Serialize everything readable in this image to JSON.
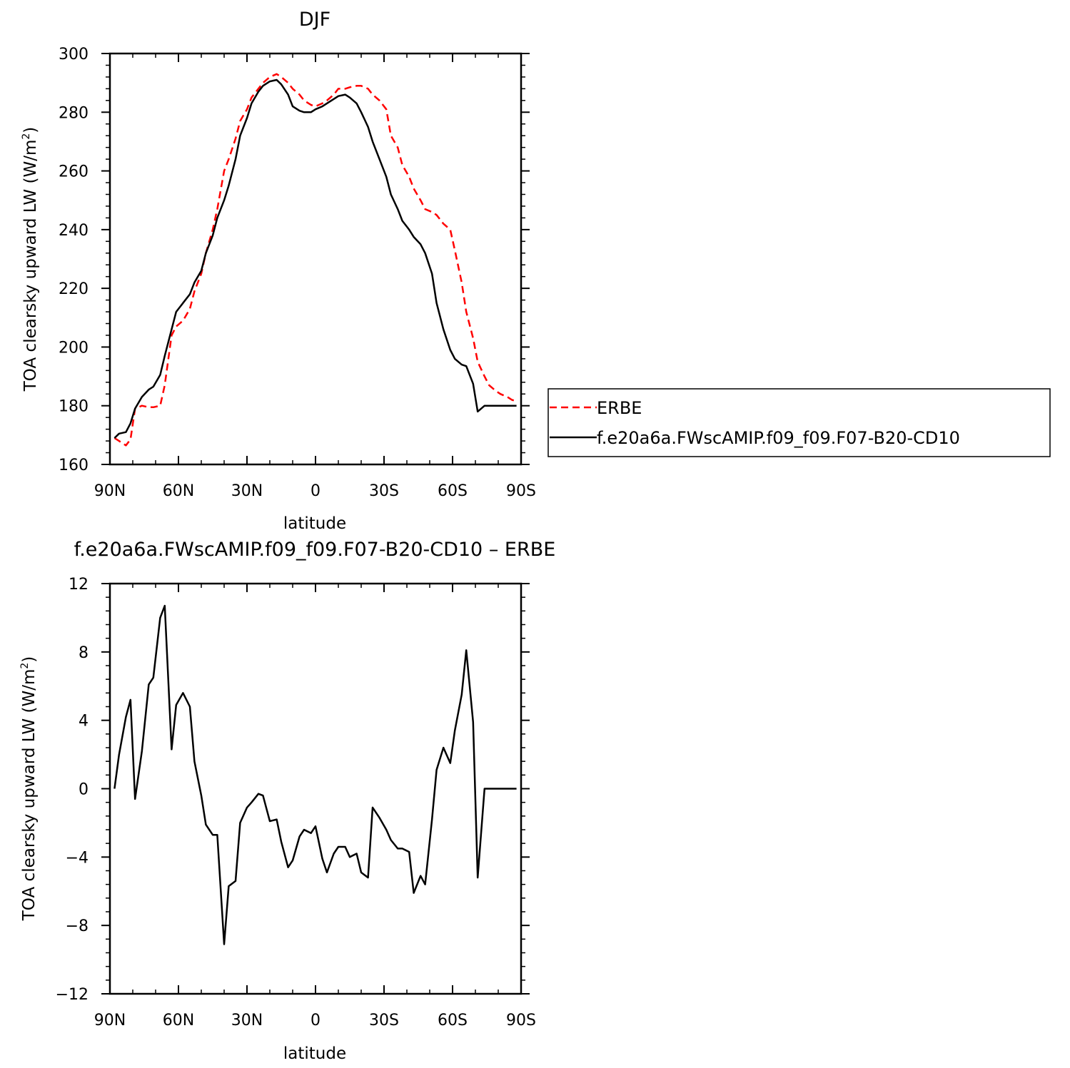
{
  "chart_data": [
    {
      "type": "line",
      "title": "DJF",
      "xlabel": "latitude",
      "ylabel": "TOA clearsky upward LW (W/m²)",
      "ylabel_main": "TOA clearsky upward LW (W/m",
      "ylabel_sup": "2",
      "ylabel_tail": ")",
      "xlim": [
        -90,
        90
      ],
      "ylim": [
        160,
        300
      ],
      "x_ticks": [
        -90,
        -60,
        -30,
        0,
        30,
        60,
        90
      ],
      "x_tick_labels": [
        "90N",
        "60N",
        "30N",
        "0",
        "30S",
        "60S",
        "90S"
      ],
      "y_ticks": [
        160,
        180,
        200,
        220,
        240,
        260,
        280,
        300
      ],
      "y_tick_labels": [
        "160",
        "180",
        "200",
        "220",
        "240",
        "260",
        "280",
        "300"
      ],
      "legend_position": "right",
      "series": [
        {
          "name": "ERBE",
          "color": "#ff0000",
          "dash": "dashed",
          "x": [
            -88,
            -86,
            -83,
            -81,
            -79,
            -76,
            -73,
            -71,
            -68,
            -66,
            -63,
            -61,
            -58,
            -55,
            -53,
            -50,
            -48,
            -45,
            -43,
            -40,
            -38,
            -35,
            -33,
            -30,
            -28,
            -25,
            -23,
            -20,
            -17,
            -15,
            -12,
            -10,
            -7,
            -5,
            -2,
            0,
            3,
            5,
            8,
            10,
            13,
            15,
            18,
            20,
            23,
            25,
            28,
            31,
            33,
            36,
            38,
            41,
            43,
            46,
            48,
            51,
            53,
            56,
            59,
            61,
            64,
            66,
            69,
            71,
            74,
            76,
            79,
            81,
            84,
            86,
            88
          ],
          "y": [
            169,
            168,
            166.5,
            168.5,
            179,
            180,
            179.5,
            179.5,
            180,
            187,
            204,
            207,
            209,
            213,
            219,
            225,
            232,
            240,
            247,
            260,
            264,
            271,
            277,
            281,
            285,
            288,
            290,
            292,
            293,
            292,
            290,
            288,
            286,
            284,
            282.5,
            282,
            283,
            284,
            286,
            288,
            288,
            288.5,
            289,
            289,
            288,
            286,
            284,
            281,
            272,
            268,
            262,
            258,
            254,
            250,
            247,
            246,
            245,
            242,
            240,
            233,
            222,
            212,
            203,
            195,
            190,
            187,
            185,
            184,
            183,
            182,
            181.5
          ]
        },
        {
          "name": "f.e20a6a.FWscAMIP.f09_f09.F07-B20-CD10",
          "color": "#000000",
          "dash": "solid",
          "x": [
            -88,
            -86,
            -83,
            -81,
            -79,
            -76,
            -73,
            -71,
            -68,
            -66,
            -63,
            -61,
            -58,
            -55,
            -53,
            -50,
            -48,
            -45,
            -43,
            -40,
            -38,
            -35,
            -33,
            -30,
            -28,
            -25,
            -23,
            -20,
            -17,
            -15,
            -12,
            -10,
            -7,
            -5,
            -2,
            0,
            3,
            5,
            8,
            10,
            13,
            15,
            18,
            20,
            23,
            25,
            28,
            31,
            33,
            36,
            38,
            41,
            43,
            46,
            48,
            51,
            53,
            56,
            59,
            61,
            64,
            66,
            69,
            71,
            74,
            76,
            79,
            81,
            84,
            86,
            88
          ],
          "y": [
            169,
            170.5,
            171,
            174,
            179,
            183,
            185.5,
            186.5,
            190.5,
            197,
            206,
            212,
            215,
            218,
            222,
            226,
            232,
            238,
            244,
            250,
            255,
            264,
            272,
            278,
            283,
            287,
            289,
            290.5,
            291,
            289.5,
            286,
            282,
            280.5,
            280,
            280,
            281,
            282,
            283,
            284.5,
            285.5,
            286,
            285,
            283,
            280,
            275,
            270,
            264,
            258,
            252,
            247,
            243,
            240,
            237.5,
            235,
            232,
            225,
            215,
            206,
            199,
            196,
            194,
            193.5,
            187.5,
            178,
            180,
            180,
            180,
            180,
            180,
            180,
            180
          ]
        }
      ]
    },
    {
      "type": "line",
      "title": "f.e20a6a.FWscAMIP.f09_f09.F07-B20-CD10 – ERBE",
      "xlabel": "latitude",
      "ylabel": "TOA clearsky upward LW (W/m²)",
      "ylabel_main": "TOA clearsky upward LW (W/m",
      "ylabel_sup": "2",
      "ylabel_tail": ")",
      "xlim": [
        -90,
        90
      ],
      "ylim": [
        -12,
        12
      ],
      "x_ticks": [
        -90,
        -60,
        -30,
        0,
        30,
        60,
        90
      ],
      "x_tick_labels": [
        "90N",
        "60N",
        "30N",
        "0",
        "30S",
        "60S",
        "90S"
      ],
      "y_ticks": [
        -12,
        -8,
        -4,
        0,
        4,
        8,
        12
      ],
      "y_tick_labels": [
        "−12",
        "−8",
        "−4",
        "0",
        "4",
        "8",
        "12"
      ],
      "series": [
        {
          "name": "",
          "color": "#000000",
          "dash": "solid",
          "x": [
            -88,
            -86,
            -83,
            -81,
            -79,
            -76,
            -73,
            -71,
            -68,
            -66,
            -63,
            -61,
            -58,
            -55,
            -53,
            -50,
            -48,
            -45,
            -43,
            -40,
            -38,
            -35,
            -33,
            -30,
            -28,
            -25,
            -23,
            -20,
            -17,
            -15,
            -12,
            -10,
            -7,
            -5,
            -2,
            0,
            3,
            5,
            8,
            10,
            13,
            15,
            18,
            20,
            23,
            25,
            28,
            31,
            33,
            36,
            38,
            41,
            43,
            46,
            48,
            51,
            53,
            56,
            59,
            61,
            64,
            66,
            69,
            71,
            74,
            76,
            79,
            81,
            84,
            86,
            88
          ],
          "y": [
            0,
            2,
            4.2,
            5.2,
            -0.6,
            2.2,
            6.1,
            6.5,
            10,
            10.7,
            2.3,
            4.9,
            5.6,
            4.8,
            1.6,
            -0.4,
            -2.1,
            -2.7,
            -2.7,
            -9.1,
            -5.7,
            -5.4,
            -2,
            -1.1,
            -0.8,
            -0.3,
            -0.4,
            -1.9,
            -1.8,
            -3.1,
            -4.6,
            -4.2,
            -2.8,
            -2.4,
            -2.6,
            -2.2,
            -4.1,
            -4.9,
            -3.8,
            -3.4,
            -3.4,
            -4,
            -3.8,
            -4.9,
            -5.2,
            -1.1,
            -1.7,
            -2.4,
            -3,
            -3.5,
            -3.5,
            -3.7,
            -6.1,
            -5.1,
            -5.6,
            -1.8,
            1.1,
            2.4,
            1.5,
            3.4,
            5.5,
            8.1,
            3.9,
            -5.2,
            0,
            0,
            0,
            0,
            0,
            0,
            0
          ]
        }
      ]
    }
  ]
}
